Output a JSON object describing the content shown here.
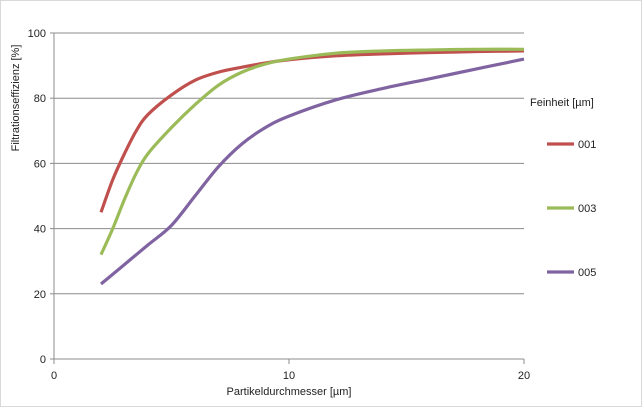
{
  "chart_data": {
    "type": "line",
    "title": "",
    "xlabel": "Partikeldurchmesser [µm]",
    "ylabel": "Filtrationseffizienz [%]",
    "xlim": [
      0,
      20
    ],
    "ylim": [
      0,
      100
    ],
    "xticks": [
      0,
      10,
      20
    ],
    "yticks": [
      0,
      20,
      40,
      60,
      80,
      100
    ],
    "grid": "horizontal",
    "legend": {
      "title": "Feinheit [µm]",
      "position": "right"
    },
    "series": [
      {
        "name": "001",
        "color": "#c0504d",
        "x": [
          2,
          2.5,
          3,
          3.5,
          4,
          5,
          6,
          7,
          8,
          9,
          10,
          12,
          14,
          16,
          18,
          20
        ],
        "y": [
          45,
          55,
          63,
          70,
          75,
          81,
          85.5,
          88,
          89.5,
          90.8,
          91.8,
          93,
          93.6,
          94,
          94.3,
          94.5
        ]
      },
      {
        "name": "003",
        "color": "#9bbb59",
        "x": [
          2,
          2.5,
          3,
          3.5,
          4,
          5,
          6,
          7,
          8,
          9,
          10,
          12,
          14,
          16,
          18,
          20
        ],
        "y": [
          32,
          40,
          49,
          57,
          63,
          71,
          78,
          84,
          88,
          90.5,
          92,
          93.8,
          94.5,
          94.8,
          95,
          95
        ]
      },
      {
        "name": "005",
        "color": "#8064a2",
        "x": [
          2,
          3,
          4,
          5,
          6,
          7,
          8,
          9,
          10,
          12,
          14,
          16,
          18,
          20
        ],
        "y": [
          23,
          29,
          35,
          41,
          50,
          59,
          66,
          71,
          74.5,
          79.5,
          83,
          86,
          89,
          92
        ]
      }
    ]
  }
}
